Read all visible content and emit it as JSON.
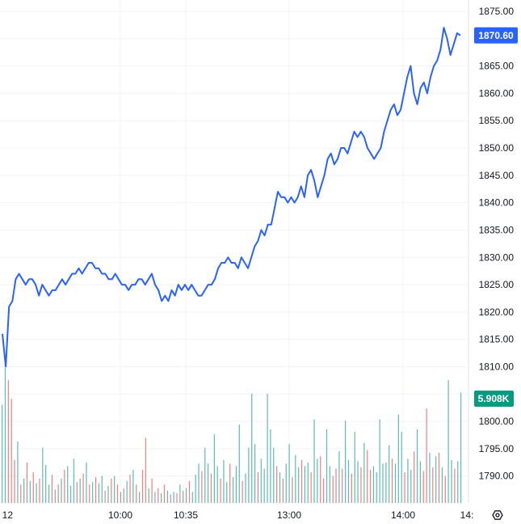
{
  "chart_data": {
    "type": "line",
    "instrument_line_color": "#2962ff",
    "grid": true,
    "y_axis": {
      "min": 1785,
      "max": 1877,
      "ticks": [
        "1790.00",
        "1795.00",
        "1800.00",
        "1805.00",
        "1810.00",
        "1815.00",
        "1820.00",
        "1825.00",
        "1830.00",
        "1835.00",
        "1840.00",
        "1845.00",
        "1850.00",
        "1855.00",
        "1860.00",
        "1865.00",
        "1870.00",
        "1875.00"
      ]
    },
    "x_axis": {
      "tick_labels": [
        "12",
        "10:00",
        "10:35",
        "13:00",
        "14:00",
        "14:"
      ]
    },
    "last_price_label": "1870.60",
    "last_price_value": 1870.6,
    "volume_label": "5.908K",
    "colors": {
      "price_badge": "#2962ff",
      "volume_badge": "#089981",
      "volume_up": "#26a69a",
      "volume_down": "#ef5350",
      "grid": "#f0f3fa"
    },
    "price_series": [
      1816,
      1810,
      1821,
      1822,
      1826,
      1827,
      1826,
      1825,
      1826,
      1826,
      1825,
      1823,
      1825,
      1824,
      1823,
      1824,
      1824,
      1825,
      1826,
      1825,
      1826,
      1827,
      1827,
      1828,
      1827,
      1828,
      1829,
      1829,
      1828,
      1828,
      1827,
      1827,
      1826,
      1826,
      1827,
      1826,
      1825,
      1825,
      1824,
      1825,
      1825,
      1826,
      1826,
      1825,
      1826,
      1827,
      1825,
      1824,
      1822,
      1823,
      1822,
      1824,
      1823,
      1825,
      1824,
      1825,
      1824,
      1825,
      1824,
      1823,
      1823,
      1824,
      1825,
      1825,
      1826,
      1828,
      1829,
      1829,
      1830,
      1829,
      1829,
      1828,
      1830,
      1829,
      1828,
      1830,
      1832,
      1833,
      1835,
      1834,
      1836,
      1836,
      1839,
      1842,
      1841,
      1841,
      1840,
      1841,
      1840,
      1841,
      1843,
      1841,
      1845,
      1846,
      1844,
      1841,
      1843,
      1845,
      1848,
      1849,
      1847,
      1848,
      1850,
      1850,
      1849,
      1851,
      1853,
      1852,
      1853,
      1852,
      1850,
      1849,
      1848,
      1849,
      1850,
      1853,
      1855,
      1857,
      1858,
      1856,
      1857,
      1860,
      1863,
      1865,
      1860,
      1858,
      1861,
      1862,
      1860,
      1863,
      1865,
      1866,
      1868,
      1872,
      1870,
      1867,
      1869,
      1871,
      1870.6
    ],
    "volume_max": 11000,
    "volume_bars": [
      [
        8000,
        "u"
      ],
      [
        11000,
        "u"
      ],
      [
        10000,
        "d"
      ],
      [
        8500,
        "d"
      ],
      [
        3500,
        "d"
      ],
      [
        5000,
        "u"
      ],
      [
        1500,
        "d"
      ],
      [
        2000,
        "u"
      ],
      [
        3300,
        "d"
      ],
      [
        1800,
        "u"
      ],
      [
        2500,
        "d"
      ],
      [
        1600,
        "u"
      ],
      [
        2000,
        "d"
      ],
      [
        4500,
        "u"
      ],
      [
        3100,
        "u"
      ],
      [
        1500,
        "u"
      ],
      [
        2300,
        "d"
      ],
      [
        1100,
        "u"
      ],
      [
        1500,
        "d"
      ],
      [
        2000,
        "u"
      ],
      [
        2700,
        "d"
      ],
      [
        3000,
        "u"
      ],
      [
        1400,
        "u"
      ],
      [
        3600,
        "u"
      ],
      [
        1700,
        "d"
      ],
      [
        2000,
        "u"
      ],
      [
        2400,
        "d"
      ],
      [
        3300,
        "u"
      ],
      [
        1500,
        "d"
      ],
      [
        1700,
        "u"
      ],
      [
        2100,
        "d"
      ],
      [
        1600,
        "u"
      ],
      [
        2200,
        "u"
      ],
      [
        1000,
        "d"
      ],
      [
        1400,
        "u"
      ],
      [
        2000,
        "d"
      ],
      [
        2200,
        "u"
      ],
      [
        1500,
        "d"
      ],
      [
        900,
        "u"
      ],
      [
        1200,
        "d"
      ],
      [
        1800,
        "u"
      ],
      [
        2300,
        "d"
      ],
      [
        2700,
        "u"
      ],
      [
        1500,
        "d"
      ],
      [
        900,
        "u"
      ],
      [
        2700,
        "d"
      ],
      [
        5300,
        "d"
      ],
      [
        1200,
        "u"
      ],
      [
        2000,
        "d"
      ],
      [
        900,
        "u"
      ],
      [
        1200,
        "d"
      ],
      [
        800,
        "u"
      ],
      [
        1500,
        "d"
      ],
      [
        1000,
        "u"
      ],
      [
        700,
        "d"
      ],
      [
        900,
        "u"
      ],
      [
        800,
        "d"
      ],
      [
        1500,
        "u"
      ],
      [
        1000,
        "d"
      ],
      [
        1200,
        "u"
      ],
      [
        1800,
        "d"
      ],
      [
        900,
        "u"
      ],
      [
        2300,
        "u"
      ],
      [
        3200,
        "u"
      ],
      [
        2600,
        "d"
      ],
      [
        4500,
        "u"
      ],
      [
        3200,
        "u"
      ],
      [
        2400,
        "d"
      ],
      [
        5600,
        "u"
      ],
      [
        3000,
        "u"
      ],
      [
        2000,
        "d"
      ],
      [
        3500,
        "u"
      ],
      [
        1700,
        "u"
      ],
      [
        3200,
        "d"
      ],
      [
        2100,
        "u"
      ],
      [
        3000,
        "u"
      ],
      [
        6400,
        "u"
      ],
      [
        1800,
        "d"
      ],
      [
        2400,
        "u"
      ],
      [
        4500,
        "u"
      ],
      [
        8900,
        "u"
      ],
      [
        4800,
        "u"
      ],
      [
        2500,
        "d"
      ],
      [
        3600,
        "u"
      ],
      [
        2800,
        "u"
      ],
      [
        8900,
        "u"
      ],
      [
        6000,
        "u"
      ],
      [
        4500,
        "u"
      ],
      [
        3000,
        "d"
      ],
      [
        2500,
        "u"
      ],
      [
        2000,
        "d"
      ],
      [
        3200,
        "u"
      ],
      [
        4800,
        "u"
      ],
      [
        2100,
        "d"
      ],
      [
        3900,
        "u"
      ],
      [
        2900,
        "u"
      ],
      [
        3500,
        "d"
      ],
      [
        3000,
        "u"
      ],
      [
        3300,
        "u"
      ],
      [
        2500,
        "d"
      ],
      [
        6800,
        "u"
      ],
      [
        3600,
        "u"
      ],
      [
        3800,
        "d"
      ],
      [
        2000,
        "d"
      ],
      [
        6000,
        "u"
      ],
      [
        3000,
        "u"
      ],
      [
        2200,
        "d"
      ],
      [
        2800,
        "d"
      ],
      [
        4200,
        "u"
      ],
      [
        2800,
        "d"
      ],
      [
        6700,
        "u"
      ],
      [
        3500,
        "u"
      ],
      [
        2400,
        "d"
      ],
      [
        5800,
        "u"
      ],
      [
        3400,
        "u"
      ],
      [
        2900,
        "d"
      ],
      [
        4900,
        "u"
      ],
      [
        4300,
        "d"
      ],
      [
        2700,
        "d"
      ],
      [
        3000,
        "u"
      ],
      [
        2500,
        "u"
      ],
      [
        6800,
        "u"
      ],
      [
        3200,
        "u"
      ],
      [
        3300,
        "u"
      ],
      [
        4700,
        "u"
      ],
      [
        3600,
        "d"
      ],
      [
        3200,
        "u"
      ],
      [
        7200,
        "u"
      ],
      [
        5800,
        "u"
      ],
      [
        2500,
        "d"
      ],
      [
        3600,
        "u"
      ],
      [
        2700,
        "u"
      ],
      [
        4200,
        "d"
      ],
      [
        6000,
        "u"
      ],
      [
        3400,
        "u"
      ],
      [
        2600,
        "d"
      ],
      [
        7700,
        "d"
      ],
      [
        4100,
        "u"
      ],
      [
        2900,
        "d"
      ],
      [
        3800,
        "u"
      ],
      [
        4100,
        "d"
      ],
      [
        2900,
        "u"
      ],
      [
        2200,
        "d"
      ],
      [
        10000,
        "u"
      ],
      [
        3500,
        "u"
      ],
      [
        2800,
        "d"
      ],
      [
        3400,
        "u"
      ],
      [
        9000,
        "u"
      ]
    ]
  },
  "ui": {
    "settings_icon": "hexagon-gear-icon"
  }
}
